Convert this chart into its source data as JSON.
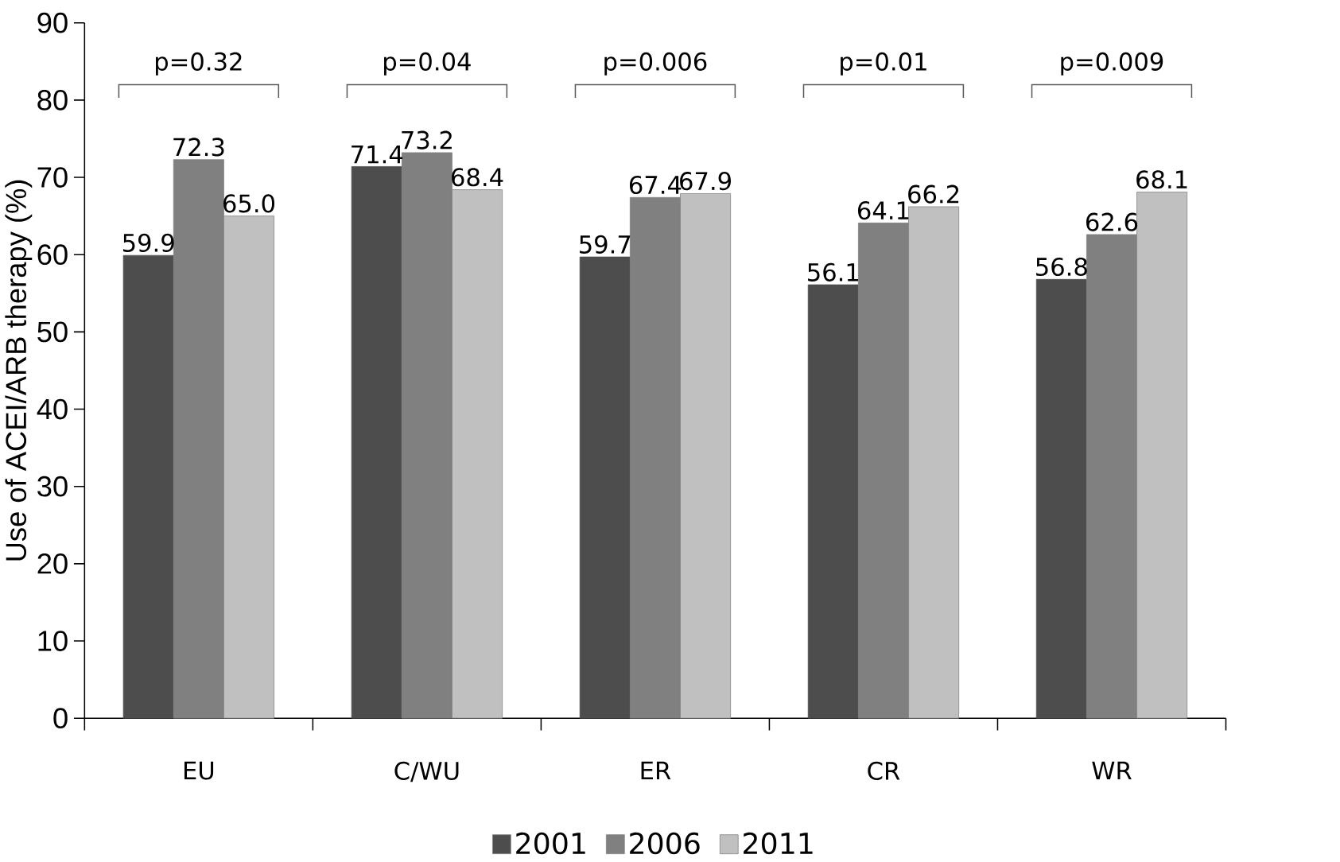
{
  "chart_data": {
    "type": "bar",
    "ylabel": "Use of ACEI/ARB therapy (%)",
    "categories": [
      "EU",
      "C/WU",
      "ER",
      "CR",
      "WR"
    ],
    "series": [
      {
        "name": "2001",
        "color": "#4d4d4d",
        "values": [
          59.9,
          71.4,
          59.7,
          56.1,
          56.8
        ],
        "value_labels": [
          "59.9",
          "71.4",
          "59.7",
          "56.1",
          "56.8"
        ]
      },
      {
        "name": "2006",
        "color": "#808080",
        "values": [
          72.3,
          73.2,
          67.4,
          64.1,
          62.6
        ],
        "value_labels": [
          "72.3",
          "73.2",
          "67.4",
          "64.1",
          "62.6"
        ]
      },
      {
        "name": "2011",
        "color": "#c0c0c0",
        "values": [
          65.0,
          68.4,
          67.9,
          66.2,
          68.1
        ],
        "value_labels": [
          "65.0",
          "68.4",
          "67.9",
          "66.2",
          "68.1"
        ]
      }
    ],
    "annotations": [
      "p=0.32",
      "p=0.04",
      "p=0.006",
      "p=0.01",
      "p=0.009"
    ],
    "ylim": [
      0,
      90
    ],
    "yticks": [
      0,
      10,
      20,
      30,
      40,
      50,
      60,
      70,
      80,
      90
    ],
    "grid": false,
    "legend": "bottom"
  }
}
